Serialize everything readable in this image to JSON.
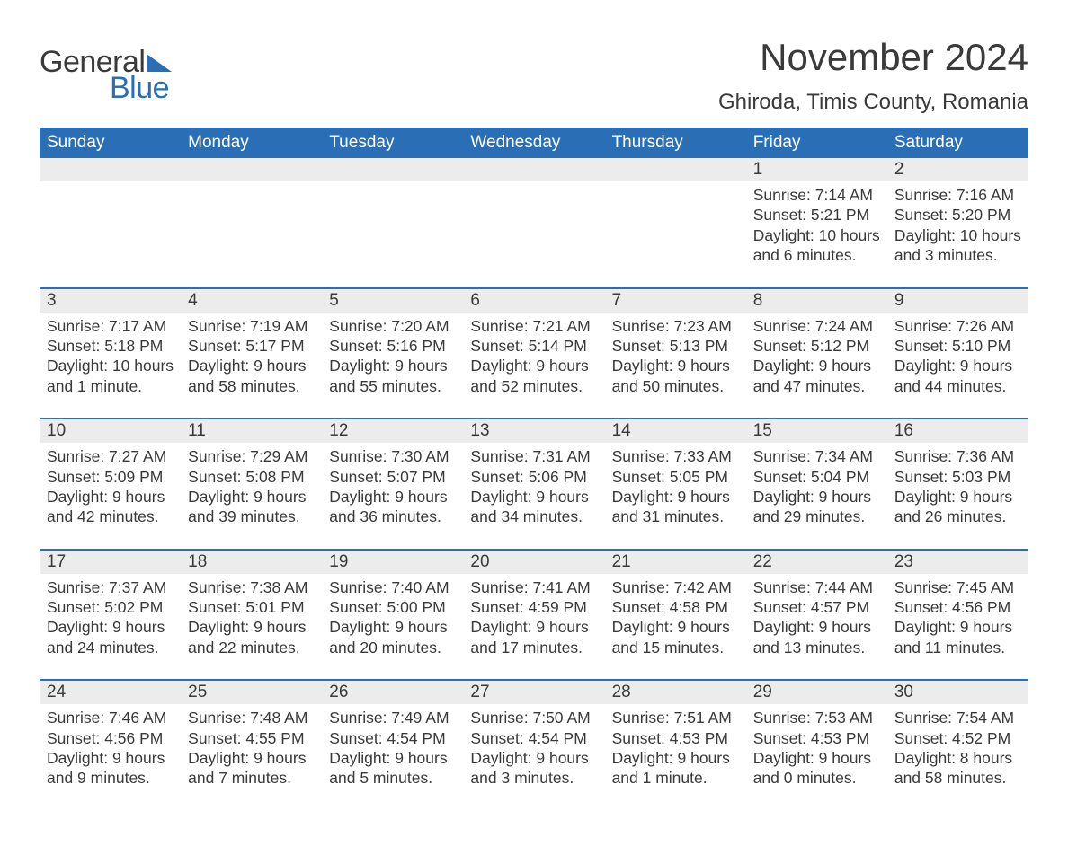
{
  "brand": {
    "word1": "General",
    "word2": "Blue",
    "accent_color": "#2a6fb5"
  },
  "title": "November 2024",
  "location": "Ghiroda, Timis County, Romania",
  "calendar": {
    "header_bg": "#2a6fb5",
    "header_fg": "#ffffff",
    "daynum_bg": "#ececec",
    "rule_color": "#2a6fb5",
    "text_color": "#3a3a3a",
    "day_headers": [
      "Sunday",
      "Monday",
      "Tuesday",
      "Wednesday",
      "Thursday",
      "Friday",
      "Saturday"
    ],
    "weeks": [
      [
        null,
        null,
        null,
        null,
        null,
        {
          "n": "1",
          "sr": "Sunrise: 7:14 AM",
          "ss": "Sunset: 5:21 PM",
          "dl": "Daylight: 10 hours and 6 minutes."
        },
        {
          "n": "2",
          "sr": "Sunrise: 7:16 AM",
          "ss": "Sunset: 5:20 PM",
          "dl": "Daylight: 10 hours and 3 minutes."
        }
      ],
      [
        {
          "n": "3",
          "sr": "Sunrise: 7:17 AM",
          "ss": "Sunset: 5:18 PM",
          "dl": "Daylight: 10 hours and 1 minute."
        },
        {
          "n": "4",
          "sr": "Sunrise: 7:19 AM",
          "ss": "Sunset: 5:17 PM",
          "dl": "Daylight: 9 hours and 58 minutes."
        },
        {
          "n": "5",
          "sr": "Sunrise: 7:20 AM",
          "ss": "Sunset: 5:16 PM",
          "dl": "Daylight: 9 hours and 55 minutes."
        },
        {
          "n": "6",
          "sr": "Sunrise: 7:21 AM",
          "ss": "Sunset: 5:14 PM",
          "dl": "Daylight: 9 hours and 52 minutes."
        },
        {
          "n": "7",
          "sr": "Sunrise: 7:23 AM",
          "ss": "Sunset: 5:13 PM",
          "dl": "Daylight: 9 hours and 50 minutes."
        },
        {
          "n": "8",
          "sr": "Sunrise: 7:24 AM",
          "ss": "Sunset: 5:12 PM",
          "dl": "Daylight: 9 hours and 47 minutes."
        },
        {
          "n": "9",
          "sr": "Sunrise: 7:26 AM",
          "ss": "Sunset: 5:10 PM",
          "dl": "Daylight: 9 hours and 44 minutes."
        }
      ],
      [
        {
          "n": "10",
          "sr": "Sunrise: 7:27 AM",
          "ss": "Sunset: 5:09 PM",
          "dl": "Daylight: 9 hours and 42 minutes."
        },
        {
          "n": "11",
          "sr": "Sunrise: 7:29 AM",
          "ss": "Sunset: 5:08 PM",
          "dl": "Daylight: 9 hours and 39 minutes."
        },
        {
          "n": "12",
          "sr": "Sunrise: 7:30 AM",
          "ss": "Sunset: 5:07 PM",
          "dl": "Daylight: 9 hours and 36 minutes."
        },
        {
          "n": "13",
          "sr": "Sunrise: 7:31 AM",
          "ss": "Sunset: 5:06 PM",
          "dl": "Daylight: 9 hours and 34 minutes."
        },
        {
          "n": "14",
          "sr": "Sunrise: 7:33 AM",
          "ss": "Sunset: 5:05 PM",
          "dl": "Daylight: 9 hours and 31 minutes."
        },
        {
          "n": "15",
          "sr": "Sunrise: 7:34 AM",
          "ss": "Sunset: 5:04 PM",
          "dl": "Daylight: 9 hours and 29 minutes."
        },
        {
          "n": "16",
          "sr": "Sunrise: 7:36 AM",
          "ss": "Sunset: 5:03 PM",
          "dl": "Daylight: 9 hours and 26 minutes."
        }
      ],
      [
        {
          "n": "17",
          "sr": "Sunrise: 7:37 AM",
          "ss": "Sunset: 5:02 PM",
          "dl": "Daylight: 9 hours and 24 minutes."
        },
        {
          "n": "18",
          "sr": "Sunrise: 7:38 AM",
          "ss": "Sunset: 5:01 PM",
          "dl": "Daylight: 9 hours and 22 minutes."
        },
        {
          "n": "19",
          "sr": "Sunrise: 7:40 AM",
          "ss": "Sunset: 5:00 PM",
          "dl": "Daylight: 9 hours and 20 minutes."
        },
        {
          "n": "20",
          "sr": "Sunrise: 7:41 AM",
          "ss": "Sunset: 4:59 PM",
          "dl": "Daylight: 9 hours and 17 minutes."
        },
        {
          "n": "21",
          "sr": "Sunrise: 7:42 AM",
          "ss": "Sunset: 4:58 PM",
          "dl": "Daylight: 9 hours and 15 minutes."
        },
        {
          "n": "22",
          "sr": "Sunrise: 7:44 AM",
          "ss": "Sunset: 4:57 PM",
          "dl": "Daylight: 9 hours and 13 minutes."
        },
        {
          "n": "23",
          "sr": "Sunrise: 7:45 AM",
          "ss": "Sunset: 4:56 PM",
          "dl": "Daylight: 9 hours and 11 minutes."
        }
      ],
      [
        {
          "n": "24",
          "sr": "Sunrise: 7:46 AM",
          "ss": "Sunset: 4:56 PM",
          "dl": "Daylight: 9 hours and 9 minutes."
        },
        {
          "n": "25",
          "sr": "Sunrise: 7:48 AM",
          "ss": "Sunset: 4:55 PM",
          "dl": "Daylight: 9 hours and 7 minutes."
        },
        {
          "n": "26",
          "sr": "Sunrise: 7:49 AM",
          "ss": "Sunset: 4:54 PM",
          "dl": "Daylight: 9 hours and 5 minutes."
        },
        {
          "n": "27",
          "sr": "Sunrise: 7:50 AM",
          "ss": "Sunset: 4:54 PM",
          "dl": "Daylight: 9 hours and 3 minutes."
        },
        {
          "n": "28",
          "sr": "Sunrise: 7:51 AM",
          "ss": "Sunset: 4:53 PM",
          "dl": "Daylight: 9 hours and 1 minute."
        },
        {
          "n": "29",
          "sr": "Sunrise: 7:53 AM",
          "ss": "Sunset: 4:53 PM",
          "dl": "Daylight: 9 hours and 0 minutes."
        },
        {
          "n": "30",
          "sr": "Sunrise: 7:54 AM",
          "ss": "Sunset: 4:52 PM",
          "dl": "Daylight: 8 hours and 58 minutes."
        }
      ]
    ]
  }
}
